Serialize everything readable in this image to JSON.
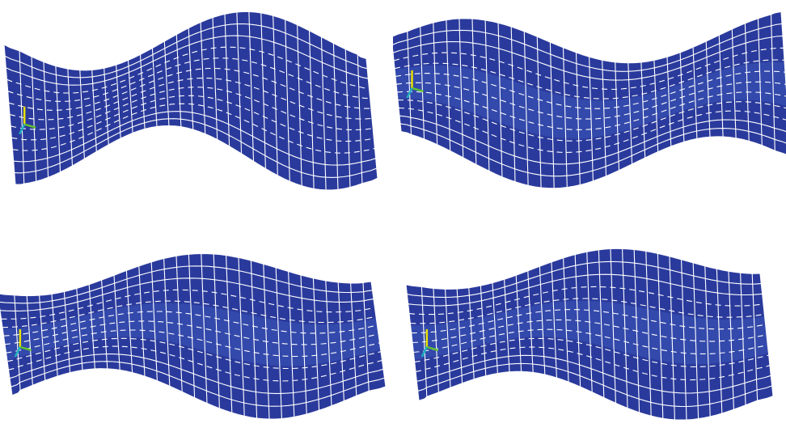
{
  "figure": {
    "background_color": "#ffffff",
    "mesh_color": "#2a3a9c",
    "mesh_shade_color": "#3b55b8",
    "grid_line_color": "#ffffff",
    "panels": [
      {
        "id": "mode-1",
        "mode_shape": "bending-one-and-half-wave",
        "grid_rows": 12,
        "grid_cols": 30
      },
      {
        "id": "mode-2",
        "mode_shape": "bending-one-and-half-wave-mirrored",
        "grid_rows": 12,
        "grid_cols": 30
      },
      {
        "id": "mode-3",
        "mode_shape": "torsional-multi-wave",
        "grid_rows": 12,
        "grid_cols": 30
      },
      {
        "id": "mode-4",
        "mode_shape": "torsional-multi-wave-shaded",
        "grid_rows": 12,
        "grid_cols": 30
      }
    ],
    "axis_triad": {
      "icon": "coordinate-triad-icon",
      "colors": {
        "x": "#1fb0c0",
        "y": "#e8e000",
        "z": "#60c030"
      }
    }
  }
}
